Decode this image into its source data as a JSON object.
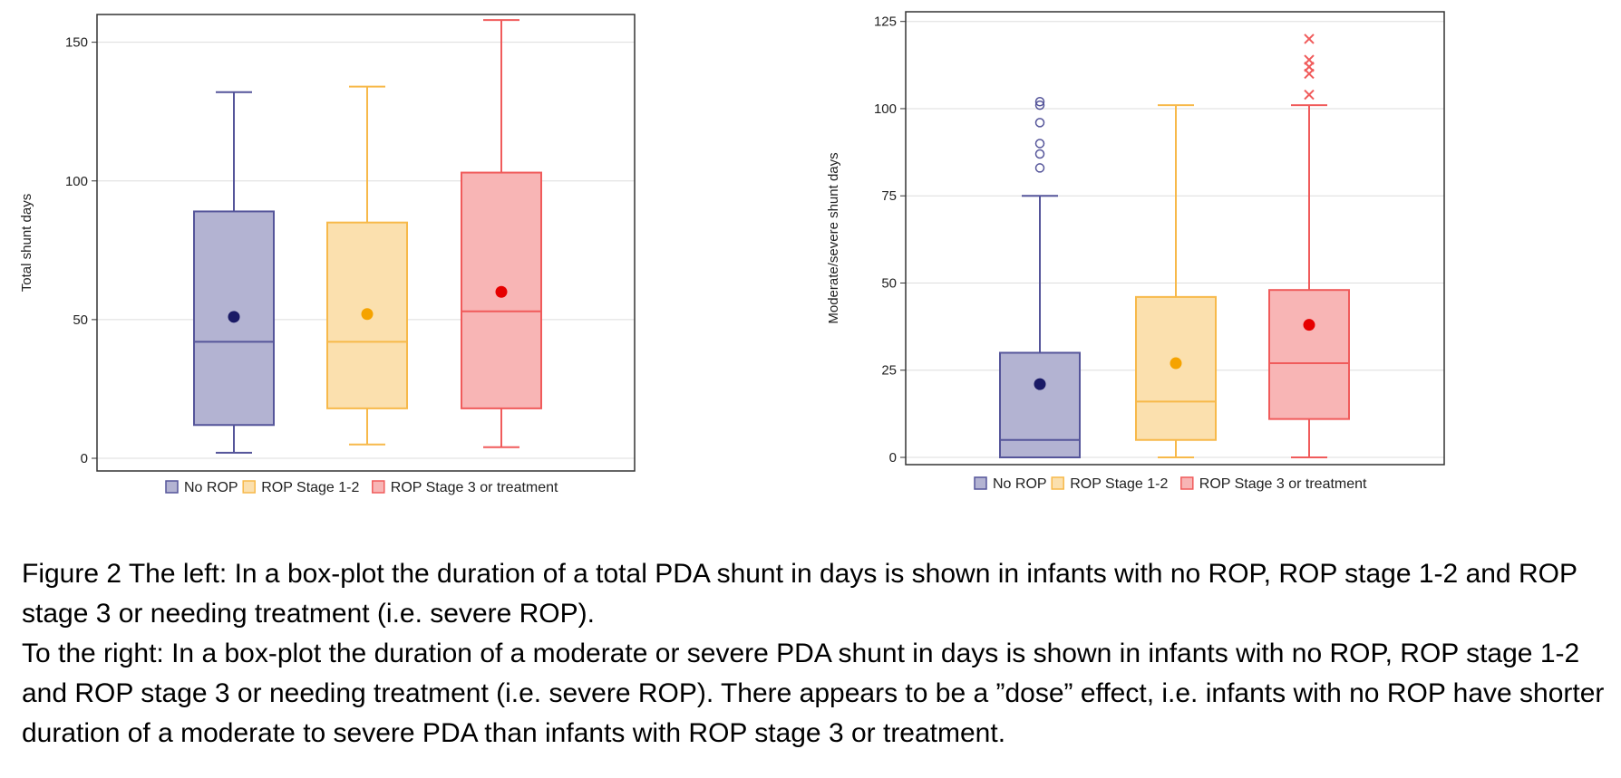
{
  "colors": {
    "no_rop": "#55559a",
    "stage12": "#f7b94a",
    "stage3": "#f05b5b",
    "grid": "#dddddd",
    "frame": "#333333"
  },
  "chart_data": [
    {
      "type": "box",
      "ylabel": "Total shunt days",
      "ylim": [
        0,
        160
      ],
      "yticks": [
        0,
        50,
        100,
        150
      ],
      "grid": "horizontal",
      "legend_position": "bottom",
      "legend": [
        "No ROP",
        "ROP Stage 1-2",
        "ROP Stage 3 or treatment"
      ],
      "series": [
        {
          "name": "No ROP",
          "color_key": "no_rop",
          "min": 2,
          "q1": 12,
          "median": 42,
          "q3": 89,
          "max": 132,
          "mean": 51,
          "outliers": [],
          "outlier_marker": "circle"
        },
        {
          "name": "ROP Stage 1-2",
          "color_key": "stage12",
          "min": 5,
          "q1": 18,
          "median": 42,
          "q3": 85,
          "max": 134,
          "mean": 52,
          "outliers": [],
          "outlier_marker": "circle"
        },
        {
          "name": "ROP Stage 3 or treatment",
          "color_key": "stage3",
          "min": 4,
          "q1": 18,
          "median": 53,
          "q3": 103,
          "max": 158,
          "mean": 60,
          "outliers": [],
          "outlier_marker": "x"
        }
      ]
    },
    {
      "type": "box",
      "ylabel": "Moderate/severe shunt days",
      "ylim": [
        0,
        127
      ],
      "yticks": [
        0,
        25,
        50,
        75,
        100,
        125
      ],
      "grid": "horizontal",
      "legend_position": "bottom",
      "legend": [
        "No ROP",
        "ROP Stage 1-2",
        "ROP Stage 3 or treatment"
      ],
      "series": [
        {
          "name": "No ROP",
          "color_key": "no_rop",
          "min": 0,
          "q1": 0,
          "median": 5,
          "q3": 30,
          "max": 75,
          "mean": 21,
          "outliers": [
            83,
            87,
            90,
            96,
            101,
            102
          ],
          "outlier_marker": "circle"
        },
        {
          "name": "ROP Stage 1-2",
          "color_key": "stage12",
          "min": 0,
          "q1": 5,
          "median": 16,
          "q3": 46,
          "max": 101,
          "mean": 27,
          "outliers": [],
          "outlier_marker": "circle"
        },
        {
          "name": "ROP Stage 3 or treatment",
          "color_key": "stage3",
          "min": 0,
          "q1": 11,
          "median": 27,
          "q3": 48,
          "max": 101,
          "mean": 38,
          "outliers": [
            104,
            110,
            112,
            114,
            120
          ],
          "outlier_marker": "x"
        }
      ]
    }
  ],
  "caption": {
    "line1": "Figure 2  The left: In a box-plot the duration of a total PDA shunt in days is shown in infants with no ROP, ROP stage 1-2 and ROP stage 3 or needing treatment (i.e. severe ROP).",
    "line2": "To the right: In a box-plot the duration of a moderate or severe PDA shunt in days is shown in infants with no ROP, ROP stage 1-2 and ROP stage 3 or needing treatment (i.e. severe ROP). There appears to be a ”dose” effect, i.e. infants with no ROP have shorter duration of a moderate to severe PDA than infants with ROP stage 3 or treatment."
  }
}
